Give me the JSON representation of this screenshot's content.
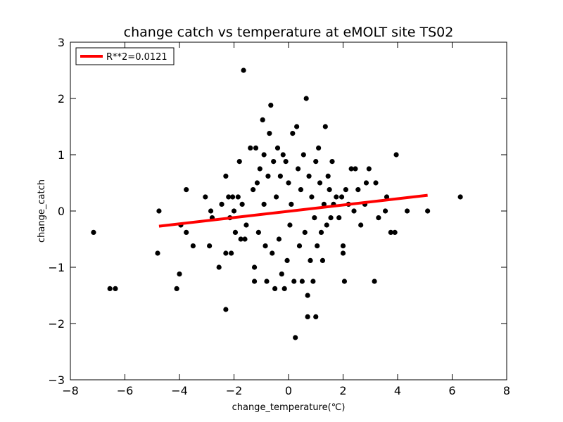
{
  "chart_data": {
    "type": "scatter",
    "title": "change catch vs temperature at eMOLT site TS02",
    "xlabel": "change_temperature(℃)",
    "ylabel": "change_catch",
    "xlim": [
      -8,
      8
    ],
    "ylim": [
      -3,
      3
    ],
    "xticks": [
      -8,
      -6,
      -4,
      -2,
      0,
      2,
      4,
      6,
      8
    ],
    "yticks": [
      -3,
      -2,
      -1,
      0,
      1,
      2,
      3
    ],
    "xtick_labels": [
      "−8",
      "−6",
      "−4",
      "−2",
      "0",
      "2",
      "4",
      "6",
      "8"
    ],
    "ytick_labels": [
      "−3",
      "−2",
      "−1",
      "0",
      "1",
      "2",
      "3"
    ],
    "grid": false,
    "legend_position": "top-left",
    "marker_color": "#000000",
    "series": [
      {
        "type": "scatter",
        "points": [
          [
            -7.15,
            -0.38
          ],
          [
            -6.55,
            -1.38
          ],
          [
            -6.35,
            -1.38
          ],
          [
            -4.8,
            -0.75
          ],
          [
            -4.75,
            0.0
          ],
          [
            -4.1,
            -1.38
          ],
          [
            -4.0,
            -1.12
          ],
          [
            -3.95,
            -0.25
          ],
          [
            -3.75,
            -0.38
          ],
          [
            -3.75,
            0.38
          ],
          [
            -3.5,
            -0.62
          ],
          [
            -3.05,
            0.25
          ],
          [
            -2.9,
            -0.62
          ],
          [
            -2.85,
            0.0
          ],
          [
            -2.8,
            -0.12
          ],
          [
            -2.55,
            -1.0
          ],
          [
            -2.45,
            0.12
          ],
          [
            -2.3,
            0.62
          ],
          [
            -2.3,
            -1.75
          ],
          [
            -2.3,
            -0.75
          ],
          [
            -2.2,
            0.25
          ],
          [
            -2.15,
            -0.12
          ],
          [
            -2.1,
            -0.75
          ],
          [
            -2.05,
            0.25
          ],
          [
            -2.0,
            0.0
          ],
          [
            -1.95,
            -0.38
          ],
          [
            -1.85,
            0.25
          ],
          [
            -1.8,
            0.88
          ],
          [
            -1.75,
            -0.5
          ],
          [
            -1.7,
            0.12
          ],
          [
            -1.65,
            2.5
          ],
          [
            -1.6,
            -0.5
          ],
          [
            -1.55,
            -0.25
          ],
          [
            -1.4,
            1.12
          ],
          [
            -1.3,
            0.38
          ],
          [
            -1.25,
            -1.0
          ],
          [
            -1.25,
            -1.25
          ],
          [
            -1.2,
            1.12
          ],
          [
            -1.15,
            0.5
          ],
          [
            -1.1,
            -0.38
          ],
          [
            -1.05,
            0.75
          ],
          [
            -0.95,
            1.62
          ],
          [
            -0.9,
            1.0
          ],
          [
            -0.9,
            0.12
          ],
          [
            -0.85,
            -0.62
          ],
          [
            -0.8,
            -1.25
          ],
          [
            -0.75,
            0.62
          ],
          [
            -0.7,
            1.38
          ],
          [
            -0.65,
            1.88
          ],
          [
            -0.6,
            -0.75
          ],
          [
            -0.55,
            0.88
          ],
          [
            -0.5,
            -1.38
          ],
          [
            -0.45,
            0.25
          ],
          [
            -0.4,
            1.12
          ],
          [
            -0.35,
            -0.5
          ],
          [
            -0.3,
            0.62
          ],
          [
            -0.25,
            -1.12
          ],
          [
            -0.2,
            1.0
          ],
          [
            -0.15,
            -1.38
          ],
          [
            -0.1,
            0.88
          ],
          [
            -0.05,
            -0.88
          ],
          [
            0.0,
            0.5
          ],
          [
            0.05,
            -0.25
          ],
          [
            0.1,
            0.12
          ],
          [
            0.15,
            1.38
          ],
          [
            0.2,
            -1.25
          ],
          [
            0.25,
            -2.25
          ],
          [
            0.3,
            1.5
          ],
          [
            0.35,
            0.75
          ],
          [
            0.4,
            -0.62
          ],
          [
            0.45,
            0.38
          ],
          [
            0.5,
            -1.25
          ],
          [
            0.55,
            1.0
          ],
          [
            0.6,
            -0.38
          ],
          [
            0.65,
            2.0
          ],
          [
            0.7,
            -1.5
          ],
          [
            0.7,
            -1.88
          ],
          [
            0.75,
            0.62
          ],
          [
            0.8,
            -0.88
          ],
          [
            0.85,
            0.25
          ],
          [
            0.9,
            -1.25
          ],
          [
            0.95,
            -0.12
          ],
          [
            1.0,
            0.88
          ],
          [
            1.0,
            -1.88
          ],
          [
            1.05,
            -0.62
          ],
          [
            1.1,
            1.12
          ],
          [
            1.15,
            0.5
          ],
          [
            1.2,
            -0.38
          ],
          [
            1.25,
            -0.88
          ],
          [
            1.3,
            0.12
          ],
          [
            1.35,
            1.5
          ],
          [
            1.4,
            -0.25
          ],
          [
            1.45,
            0.62
          ],
          [
            1.5,
            0.38
          ],
          [
            1.55,
            -0.12
          ],
          [
            1.6,
            0.88
          ],
          [
            1.65,
            0.12
          ],
          [
            1.75,
            0.25
          ],
          [
            1.85,
            -0.12
          ],
          [
            1.95,
            0.25
          ],
          [
            2.0,
            -0.62
          ],
          [
            2.0,
            -0.75
          ],
          [
            2.05,
            -1.25
          ],
          [
            2.1,
            0.38
          ],
          [
            2.2,
            0.12
          ],
          [
            2.3,
            0.75
          ],
          [
            2.4,
            0.0
          ],
          [
            2.45,
            0.75
          ],
          [
            2.55,
            0.38
          ],
          [
            2.65,
            -0.25
          ],
          [
            2.8,
            0.12
          ],
          [
            2.85,
            0.5
          ],
          [
            2.95,
            0.75
          ],
          [
            3.15,
            -1.25
          ],
          [
            3.2,
            0.5
          ],
          [
            3.3,
            -0.12
          ],
          [
            3.55,
            0.0
          ],
          [
            3.6,
            0.25
          ],
          [
            3.75,
            -0.38
          ],
          [
            3.9,
            -0.38
          ],
          [
            3.95,
            1.0
          ],
          [
            4.35,
            0.0
          ],
          [
            5.1,
            0.0
          ],
          [
            6.3,
            0.25
          ]
        ]
      },
      {
        "name": "R**2=0.0121",
        "type": "line",
        "color": "#ff0000",
        "points": [
          [
            -4.75,
            -0.27
          ],
          [
            5.1,
            0.28
          ]
        ]
      }
    ]
  }
}
